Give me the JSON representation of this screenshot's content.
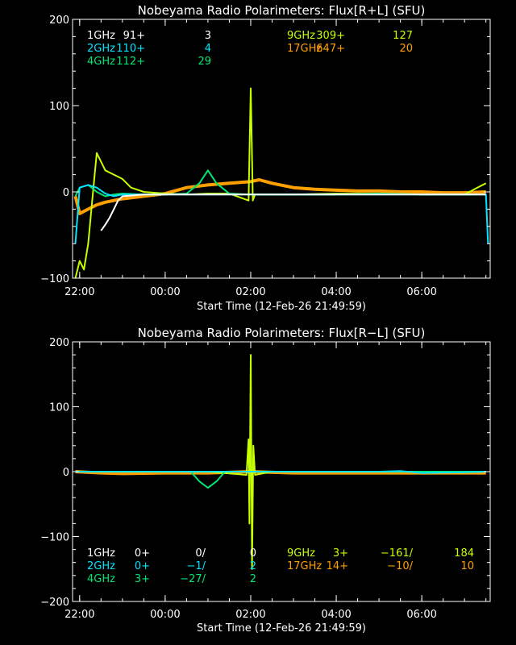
{
  "chart_data": [
    {
      "type": "line",
      "title": "Nobeyama Radio Polarimeters: Flux[R+L] (SFU)",
      "xlabel": "Start Time (12-Feb-26 21:49:59)",
      "ylabel": "",
      "xlim": [
        -0.166,
        9.6
      ],
      "ylim": [
        -100,
        200
      ],
      "x_tick_labels": [
        "22:00",
        "00:00",
        "02:00",
        "04:00",
        "06:00"
      ],
      "x_tick_values": [
        0,
        2,
        4,
        6,
        8
      ],
      "y_tick_labels": [
        "−100",
        "0",
        "100",
        "200"
      ],
      "y_tick_values": [
        -100,
        0,
        100,
        200
      ],
      "grid": false,
      "legend": [
        {
          "band": "1GHz",
          "v1": "91+",
          "v2": "3",
          "color": "#ffffff"
        },
        {
          "band": "2GHz",
          "v1": "110+",
          "v2": "4",
          "color": "#00e5ff"
        },
        {
          "band": "4GHz",
          "v1": "112+",
          "v2": "29",
          "color": "#00e676"
        },
        {
          "band": "9GHz",
          "v1": "309+",
          "v2": "127",
          "color": "#c6ff00"
        },
        {
          "band": "17GHz",
          "v1": "647+",
          "v2": "20",
          "color": "#ffa000"
        }
      ],
      "series": [
        {
          "color": "#ffa000",
          "x": [
            -0.1,
            0.0,
            0.2,
            0.4,
            0.6,
            0.8,
            1.0,
            1.5,
            2.0,
            2.5,
            3.0,
            3.5,
            4.0,
            4.2,
            4.5,
            5.0,
            5.5,
            6.0,
            6.5,
            7.0,
            7.5,
            8.0,
            8.5,
            9.0,
            9.5
          ],
          "y": [
            -5,
            -25,
            -20,
            -15,
            -12,
            -10,
            -8,
            -5,
            -2,
            5,
            8,
            10,
            12,
            14,
            10,
            5,
            3,
            2,
            1,
            1,
            0,
            0,
            -1,
            -1,
            0
          ]
        },
        {
          "color": "#c6ff00",
          "x": [
            -0.1,
            0.0,
            0.1,
            0.2,
            0.35,
            0.4,
            0.6,
            0.8,
            1.0,
            1.2,
            1.5,
            2.0,
            2.5,
            3.0,
            3.5,
            3.95,
            4.0,
            4.05,
            4.1,
            4.5,
            5.0,
            6.0,
            7.0,
            8.0,
            9.0,
            9.3,
            9.5
          ],
          "y": [
            -100,
            -80,
            -90,
            -60,
            20,
            45,
            25,
            20,
            15,
            5,
            0,
            -2,
            -3,
            -2,
            -2,
            -10,
            120,
            -10,
            -3,
            -3,
            -3,
            -2,
            -2,
            -3,
            -3,
            5,
            10
          ]
        },
        {
          "color": "#00e676",
          "x": [
            -0.1,
            0.0,
            0.2,
            0.4,
            0.6,
            0.8,
            1.0,
            1.5,
            2.0,
            2.5,
            2.8,
            3.0,
            3.2,
            3.5,
            4.0,
            5.0,
            6.0,
            7.0,
            8.0,
            9.0,
            9.5
          ],
          "y": [
            -5,
            5,
            8,
            0,
            -5,
            -3,
            -2,
            -3,
            -3,
            -2,
            10,
            25,
            10,
            -2,
            -3,
            -3,
            -3,
            -2,
            -3,
            -3,
            -3
          ]
        },
        {
          "color": "#00e5ff",
          "x": [
            -0.1,
            0.0,
            0.2,
            0.4,
            0.6,
            0.8,
            1.0,
            1.5,
            2.0,
            3.0,
            4.0,
            5.0,
            6.0,
            7.0,
            8.0,
            9.0,
            9.5,
            9.55
          ],
          "y": [
            -60,
            5,
            8,
            5,
            -2,
            -5,
            -3,
            -3,
            -3,
            -3,
            -3,
            -3,
            -3,
            -3,
            -3,
            -3,
            -3,
            -60
          ]
        },
        {
          "color": "#ffffff",
          "x": [
            0.5,
            0.6,
            0.7,
            0.8,
            0.9,
            1.0,
            1.5,
            2.0,
            3.0,
            4.0,
            5.0,
            6.0,
            7.0,
            8.0,
            9.0,
            9.5
          ],
          "y": [
            -45,
            -38,
            -30,
            -20,
            -10,
            -5,
            -3,
            -3,
            -3,
            -3,
            -3,
            -3,
            -3,
            -3,
            -3,
            -3
          ]
        }
      ]
    },
    {
      "type": "line",
      "title": "Nobeyama Radio Polarimeters: Flux[R−L] (SFU)",
      "xlabel": "Start Time (12-Feb-26 21:49:59)",
      "ylabel": "",
      "xlim": [
        -0.166,
        9.6
      ],
      "ylim": [
        -200,
        200
      ],
      "x_tick_labels": [
        "22:00",
        "00:00",
        "02:00",
        "04:00",
        "06:00"
      ],
      "x_tick_values": [
        0,
        2,
        4,
        6,
        8
      ],
      "y_tick_labels": [
        "−200",
        "−100",
        "0",
        "100",
        "200"
      ],
      "y_tick_values": [
        -200,
        -100,
        0,
        100,
        200
      ],
      "grid": false,
      "legend": [
        {
          "band": "1GHz",
          "v1": "0+",
          "v2": "0/",
          "v3": "0",
          "color": "#ffffff"
        },
        {
          "band": "2GHz",
          "v1": "0+",
          "v2": "−1/",
          "v3": "2",
          "color": "#00e5ff"
        },
        {
          "band": "4GHz",
          "v1": "3+",
          "v2": "−27/",
          "v3": "2",
          "color": "#00e676"
        },
        {
          "band": "9GHz",
          "v1": "3+",
          "v2": "−161/",
          "v3": "184",
          "color": "#c6ff00"
        },
        {
          "band": "17GHz",
          "v1": "14+",
          "v2": "−10/",
          "v3": "10",
          "color": "#ffa000"
        }
      ],
      "series": [
        {
          "color": "#ffa000",
          "x": [
            -0.1,
            0.5,
            1.0,
            2.0,
            3.0,
            4.0,
            5.0,
            6.0,
            7.0,
            8.0,
            9.0,
            9.5
          ],
          "y": [
            0,
            -2,
            -3,
            -2,
            -2,
            0,
            -2,
            -2,
            -2,
            -2,
            -2,
            -2
          ]
        },
        {
          "color": "#c6ff00",
          "x": [
            -0.1,
            1.0,
            2.0,
            3.0,
            3.9,
            3.95,
            3.97,
            4.0,
            4.03,
            4.06,
            4.1,
            4.5,
            5.0,
            6.0,
            7.0,
            8.0,
            9.0,
            9.5
          ],
          "y": [
            0,
            0,
            0,
            0,
            -5,
            50,
            -80,
            180,
            -150,
            40,
            -5,
            0,
            0,
            0,
            0,
            0,
            0,
            0
          ]
        },
        {
          "color": "#00e676",
          "x": [
            -0.1,
            1.0,
            2.0,
            2.6,
            2.8,
            3.0,
            3.2,
            3.4,
            4.0,
            5.0,
            6.0,
            7.0,
            8.0,
            9.0,
            9.5
          ],
          "y": [
            0,
            0,
            0,
            0,
            -15,
            -25,
            -15,
            0,
            0,
            0,
            0,
            0,
            0,
            0,
            0
          ]
        },
        {
          "color": "#00e5ff",
          "x": [
            -0.1,
            0.5,
            1.0,
            2.0,
            3.0,
            4.0,
            5.0,
            6.0,
            7.0,
            7.5,
            8.0,
            9.0,
            9.5
          ],
          "y": [
            0,
            0,
            0,
            0,
            0,
            0,
            0,
            0,
            0,
            1,
            -2,
            -1,
            0
          ]
        }
      ]
    }
  ]
}
